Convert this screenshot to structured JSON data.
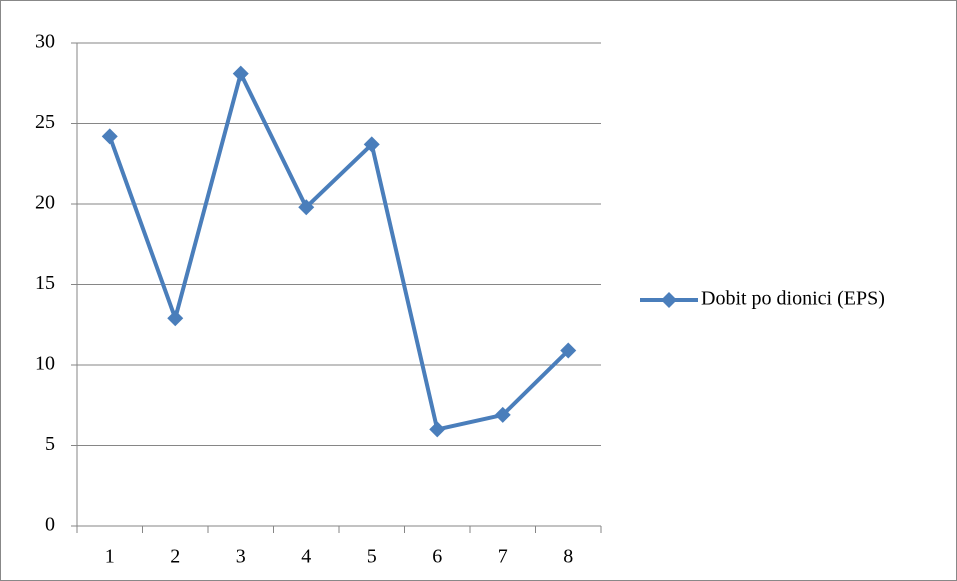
{
  "chart_data": {
    "type": "line",
    "categories": [
      "1",
      "2",
      "3",
      "4",
      "5",
      "6",
      "7",
      "8"
    ],
    "series": [
      {
        "name": "Dobit po dionici (EPS)",
        "color": "#4a7ebb",
        "values": [
          24.2,
          12.9,
          28.1,
          19.8,
          23.7,
          6.0,
          6.9,
          10.9
        ]
      }
    ],
    "ylim": [
      0,
      30
    ],
    "yticks": [
      0,
      5,
      10,
      15,
      20,
      25,
      30
    ],
    "grid": true,
    "legend": "right"
  }
}
